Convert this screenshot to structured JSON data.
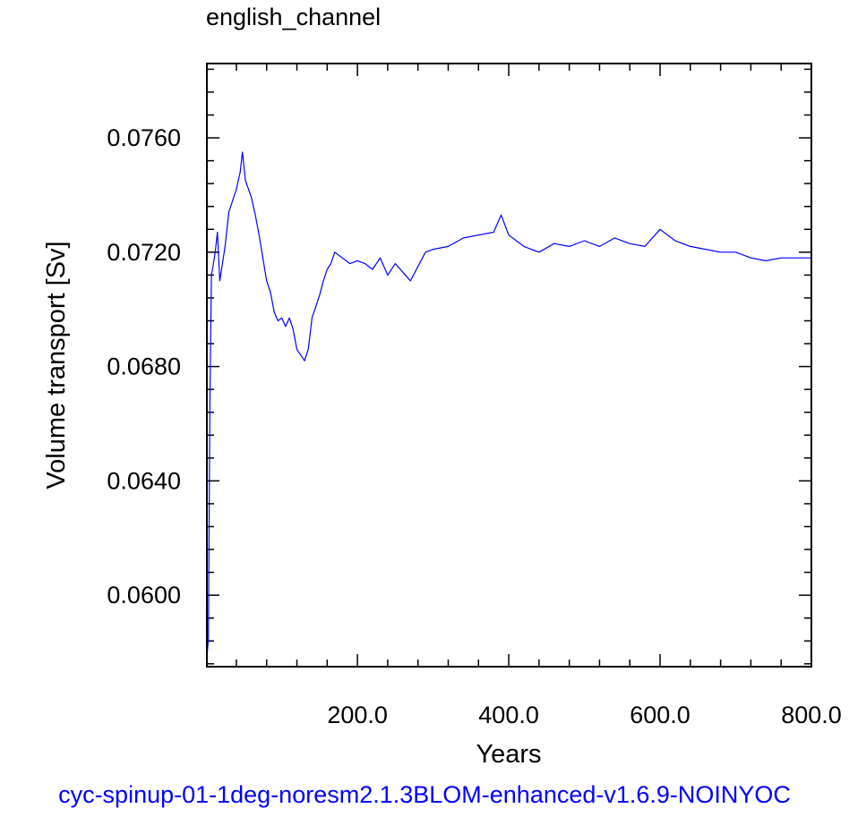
{
  "chart_data": {
    "type": "line",
    "title": "english_channel",
    "xlabel": "Years",
    "ylabel": "Volume transport [Sv]",
    "caption": "cyc-spinup-01-1deg-noresm2.1.3BLOM-enhanced-v1.6.9-NOINYOC",
    "xlim": [
      1,
      800
    ],
    "ylim": [
      0.0575,
      0.0786
    ],
    "x_ticks": [
      200,
      400,
      600,
      800
    ],
    "x_tick_labels": [
      "200.0",
      "400.0",
      "600.0",
      "800.0"
    ],
    "y_ticks": [
      0.06,
      0.064,
      0.068,
      0.072,
      0.076
    ],
    "y_tick_labels": [
      "0.0600",
      "0.0640",
      "0.0680",
      "0.0720",
      "0.0760"
    ],
    "grid": false,
    "legend": "none",
    "series": [
      {
        "color": "#0000ff",
        "x": [
          1,
          3,
          5,
          7,
          9,
          12,
          15,
          18,
          21,
          25,
          30,
          35,
          40,
          45,
          48,
          52,
          56,
          60,
          65,
          70,
          75,
          80,
          85,
          90,
          95,
          100,
          105,
          110,
          115,
          120,
          125,
          130,
          135,
          140,
          145,
          150,
          155,
          160,
          165,
          170,
          180,
          190,
          200,
          210,
          220,
          230,
          240,
          250,
          260,
          270,
          280,
          290,
          300,
          320,
          340,
          360,
          380,
          390,
          400,
          420,
          440,
          460,
          480,
          500,
          520,
          540,
          560,
          580,
          600,
          620,
          640,
          660,
          680,
          700,
          720,
          740,
          760,
          780,
          800
        ],
        "y": [
          0.0578,
          0.0585,
          0.0668,
          0.0712,
          0.0715,
          0.072,
          0.0727,
          0.071,
          0.0715,
          0.0722,
          0.0734,
          0.0738,
          0.0742,
          0.0748,
          0.0755,
          0.0745,
          0.0742,
          0.0739,
          0.0733,
          0.0726,
          0.0718,
          0.071,
          0.0706,
          0.0699,
          0.0696,
          0.0697,
          0.0694,
          0.0697,
          0.0693,
          0.0686,
          0.0684,
          0.0682,
          0.0686,
          0.0697,
          0.0701,
          0.0705,
          0.071,
          0.0714,
          0.0716,
          0.072,
          0.0718,
          0.0716,
          0.0717,
          0.0716,
          0.0714,
          0.0718,
          0.0712,
          0.0716,
          0.0713,
          0.071,
          0.0715,
          0.072,
          0.0721,
          0.0722,
          0.0725,
          0.0726,
          0.0727,
          0.0733,
          0.0726,
          0.0722,
          0.072,
          0.0723,
          0.0722,
          0.0724,
          0.0722,
          0.0725,
          0.0723,
          0.0722,
          0.0728,
          0.0724,
          0.0722,
          0.0721,
          0.072,
          0.072,
          0.0718,
          0.0717,
          0.0718,
          0.0718,
          0.0718
        ]
      }
    ]
  }
}
